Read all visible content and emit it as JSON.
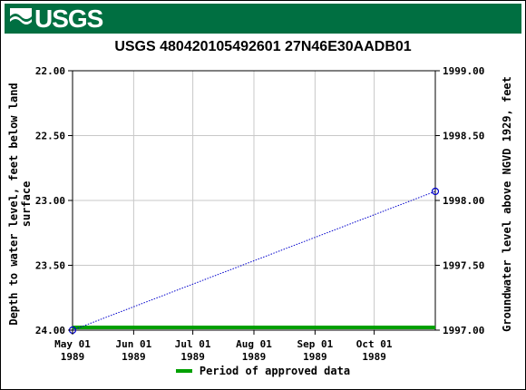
{
  "banner": {
    "logo_text": "USGS",
    "color": "#006f41"
  },
  "chart_data": {
    "type": "line",
    "title": "USGS 480420105492601 27N46E30AADB01",
    "ylabel_left": [
      "Depth to water level, feet below land",
      "surface"
    ],
    "ylabel_right": "Groundwater level above NGVD 1929, feet",
    "y_left": {
      "min": 22.0,
      "max": 24.0,
      "inverted": true,
      "ticks": [
        "22.00",
        "22.50",
        "23.00",
        "23.50",
        "24.00"
      ]
    },
    "y_right": {
      "min": 1997.0,
      "max": 1999.0,
      "ticks": [
        "1999.00",
        "1998.50",
        "1998.00",
        "1997.50",
        "1997.00"
      ]
    },
    "x": {
      "min": "1989-05-01",
      "max": "1989-11-01",
      "ticks": [
        {
          "date": "1989-05-01",
          "label": [
            "May 01",
            "1989"
          ]
        },
        {
          "date": "1989-06-01",
          "label": [
            "Jun 01",
            "1989"
          ]
        },
        {
          "date": "1989-07-01",
          "label": [
            "Jul 01",
            "1989"
          ]
        },
        {
          "date": "1989-08-01",
          "label": [
            "Aug 01",
            "1989"
          ]
        },
        {
          "date": "1989-09-01",
          "label": [
            "Sep 01",
            "1989"
          ]
        },
        {
          "date": "1989-10-01",
          "label": [
            "Oct 01",
            "1989"
          ]
        }
      ]
    },
    "series": [
      {
        "name": "",
        "color": "#0000cc",
        "style": "dotted",
        "markers": "circle",
        "points": [
          {
            "x": "1989-05-01",
            "y": 24.0
          },
          {
            "x": "1989-11-01",
            "y": 22.93
          }
        ]
      }
    ],
    "approved_period": {
      "start": "1989-05-01",
      "end": "1989-11-01",
      "color": "#00a000"
    },
    "grid": true,
    "legend": {
      "placement": "bottom",
      "entries": [
        {
          "label": "Period of approved data",
          "color": "#00a000"
        }
      ]
    }
  }
}
